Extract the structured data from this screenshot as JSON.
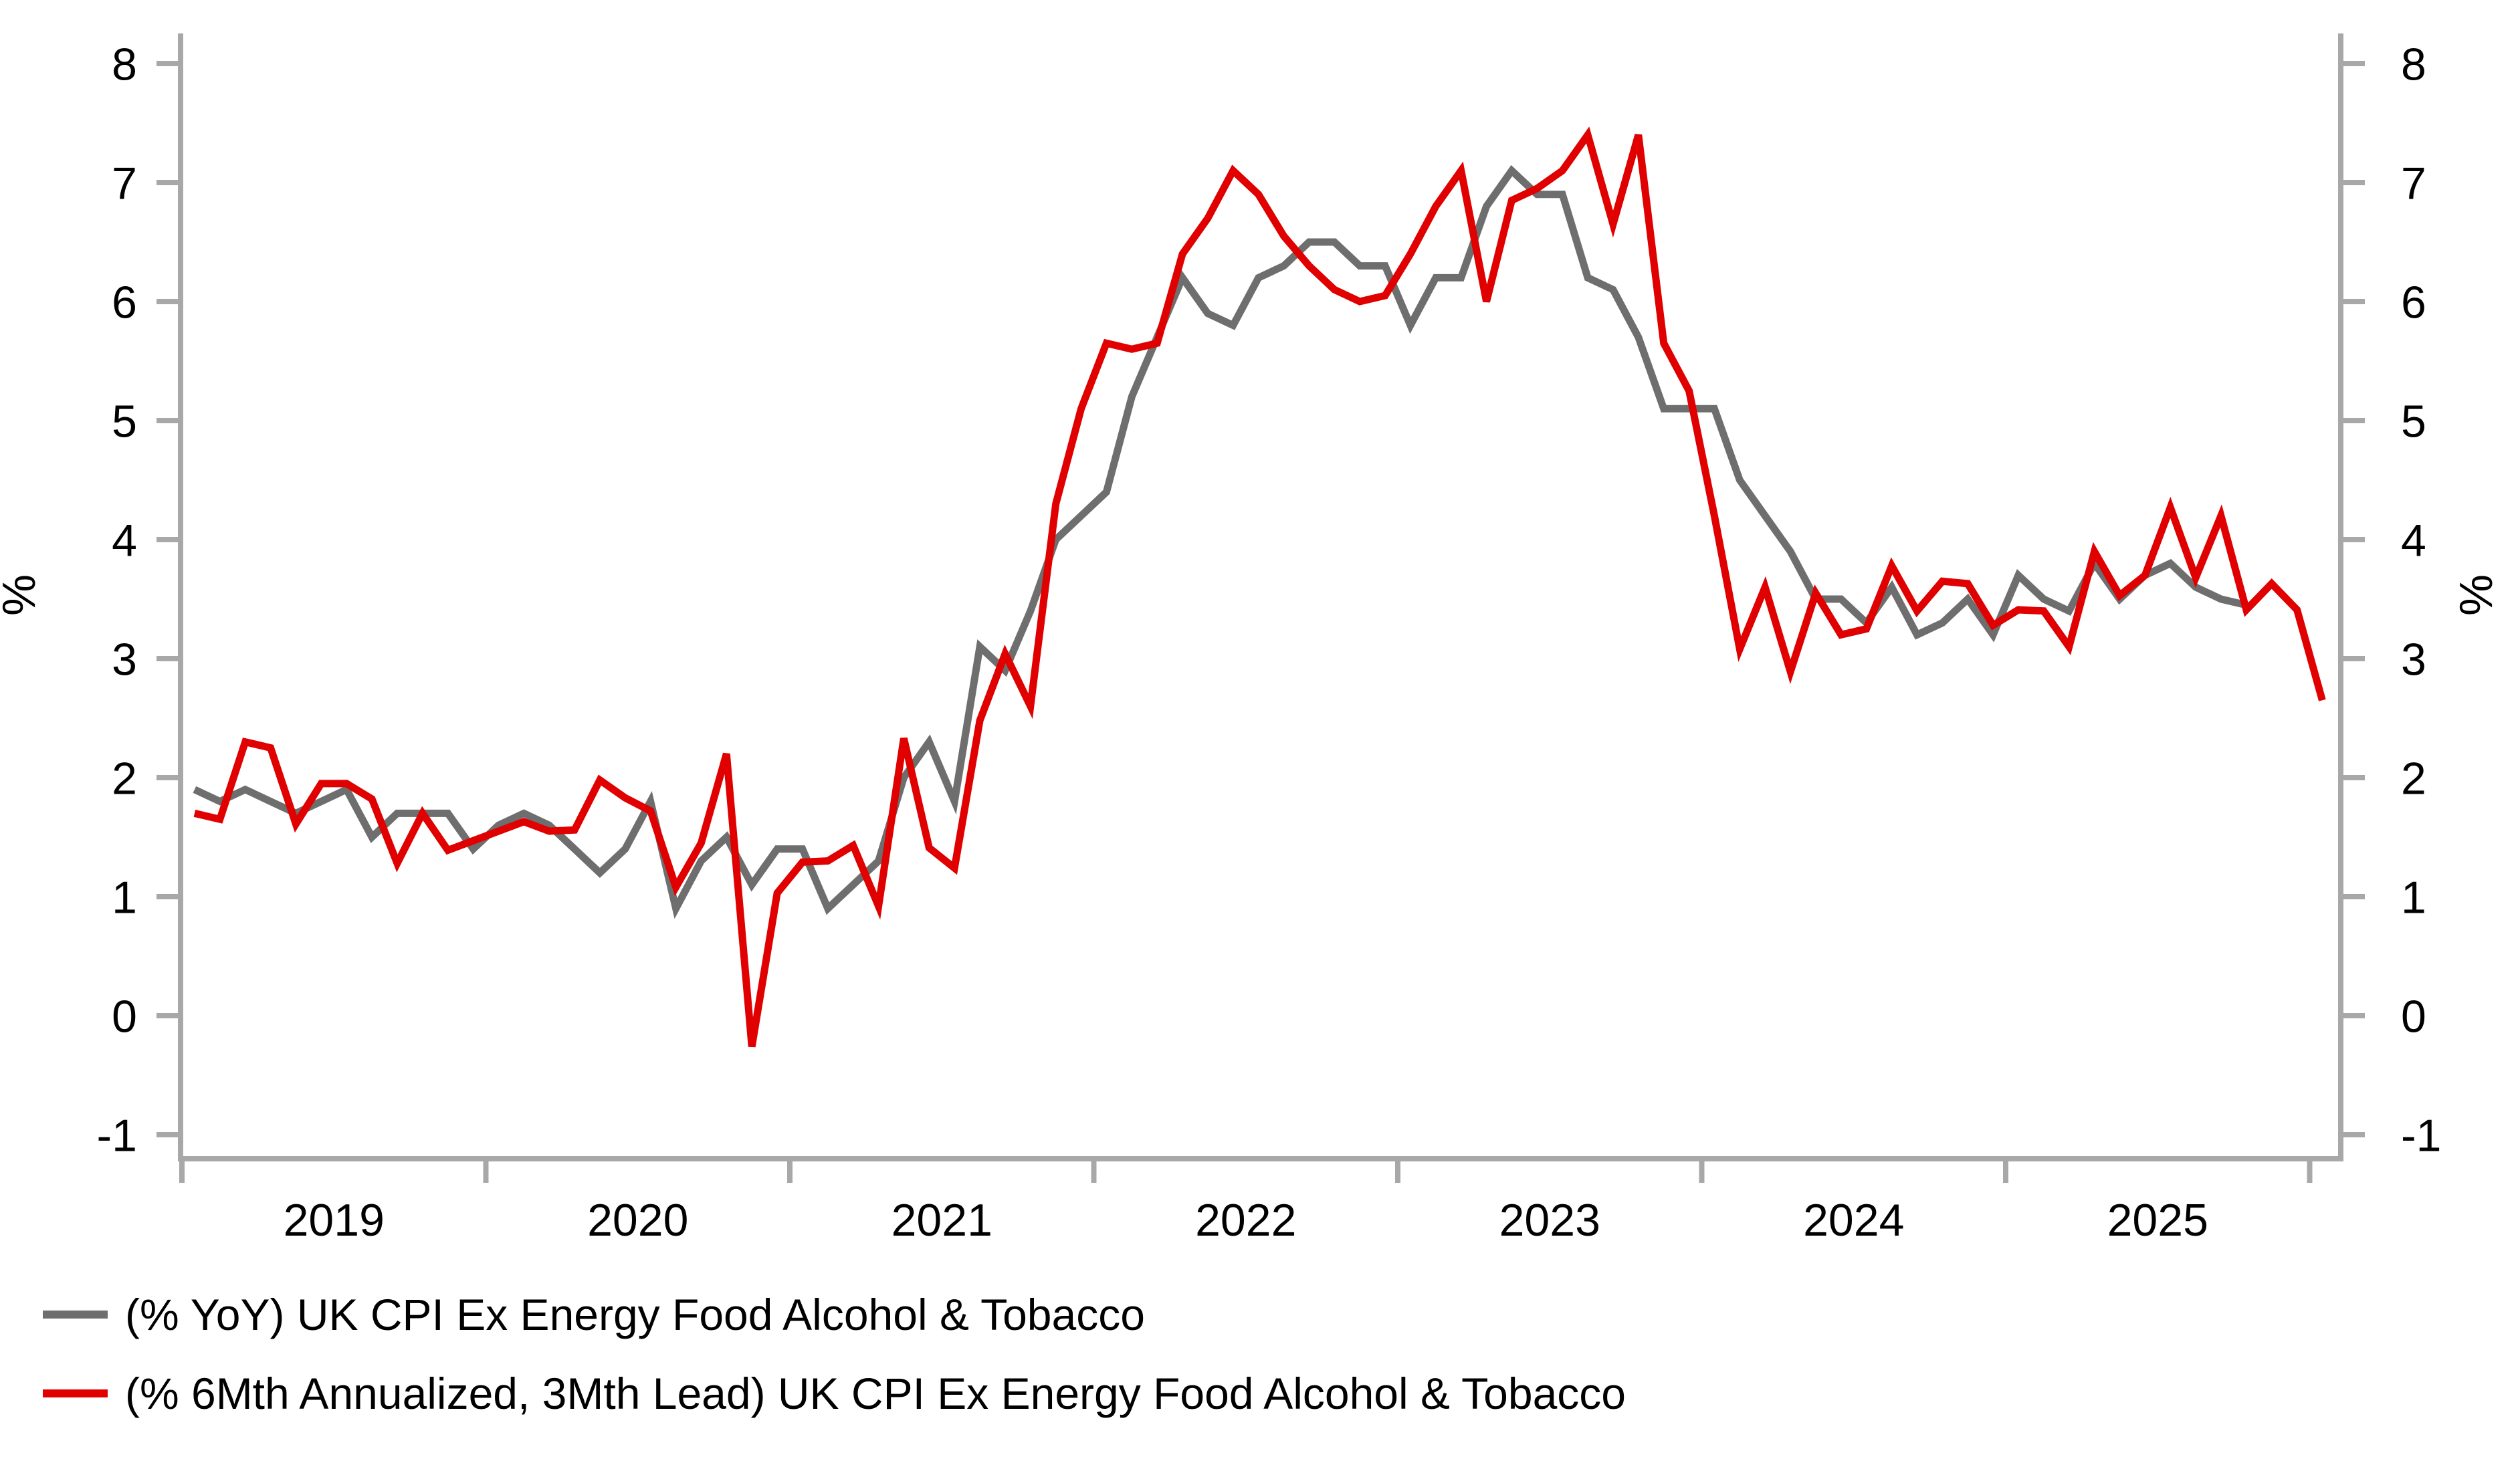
{
  "chart_data": {
    "type": "line",
    "title": "",
    "ylabel_left": "%",
    "ylabel_right": "%",
    "ylim": [
      -1,
      8
    ],
    "y_ticks": [
      8,
      7,
      6,
      5,
      4,
      3,
      2,
      1,
      0,
      -1
    ],
    "x_year_labels": [
      "2019",
      "2020",
      "2021",
      "2022",
      "2023",
      "2024",
      "2025"
    ],
    "x_start": "2019-01",
    "frequency": "monthly",
    "grid": false,
    "legend_position": "bottom-left",
    "axis_color": "#a8a8a8",
    "text_color": "#000000",
    "series": [
      {
        "name": "(% YoY) UK CPI Ex Energy Food Alcohol & Tobacco",
        "color": "#6e6e6e",
        "start": "2019-01",
        "end": "2025-10",
        "values": [
          1.9,
          1.8,
          1.9,
          1.8,
          1.7,
          1.8,
          1.9,
          1.5,
          1.7,
          1.7,
          1.7,
          1.4,
          1.6,
          1.7,
          1.6,
          1.4,
          1.2,
          1.4,
          1.8,
          0.9,
          1.3,
          1.5,
          1.1,
          1.4,
          1.4,
          0.9,
          1.1,
          1.3,
          2.0,
          2.3,
          1.8,
          3.1,
          2.9,
          3.4,
          4.0,
          4.2,
          4.4,
          5.2,
          5.7,
          6.2,
          5.9,
          5.8,
          6.2,
          6.3,
          6.5,
          6.5,
          6.3,
          6.3,
          5.8,
          6.2,
          6.2,
          6.8,
          7.1,
          6.9,
          6.9,
          6.2,
          6.1,
          5.7,
          5.1,
          5.1,
          5.1,
          4.5,
          4.2,
          3.9,
          3.5,
          3.5,
          3.3,
          3.6,
          3.2,
          3.3,
          3.5,
          3.2,
          3.7,
          3.5,
          3.4,
          3.8,
          3.5,
          3.7,
          3.8,
          3.6,
          3.5,
          3.45
        ]
      },
      {
        "name": "(% 6Mth Annualized, 3Mth Lead) UK CPI Ex Energy Food Alcohol & Tobacco",
        "color": "#e00000",
        "start": "2019-01",
        "end": "2026-01",
        "values": [
          1.7,
          1.65,
          2.3,
          2.25,
          1.61,
          1.95,
          1.95,
          1.82,
          1.28,
          1.7,
          1.39,
          1.47,
          1.55,
          1.63,
          1.55,
          1.56,
          1.98,
          1.83,
          1.72,
          1.08,
          1.45,
          2.2,
          -0.26,
          1.03,
          1.29,
          1.3,
          1.43,
          0.92,
          2.33,
          1.41,
          1.24,
          2.48,
          3.04,
          2.6,
          4.3,
          5.1,
          5.65,
          5.6,
          5.65,
          6.4,
          6.7,
          7.1,
          6.9,
          6.55,
          6.3,
          6.1,
          6.0,
          6.05,
          6.4,
          6.8,
          7.1,
          6.0,
          6.85,
          6.95,
          7.1,
          7.4,
          6.65,
          7.4,
          5.65,
          5.25,
          4.2,
          3.08,
          3.6,
          2.89,
          3.55,
          3.2,
          3.25,
          3.78,
          3.4,
          3.65,
          3.63,
          3.28,
          3.41,
          3.4,
          3.1,
          3.9,
          3.53,
          3.7,
          4.27,
          3.68,
          4.2,
          3.41,
          3.63,
          3.41,
          2.65
        ]
      }
    ],
    "legend": [
      "(% YoY) UK CPI Ex Energy Food Alcohol & Tobacco",
      "(% 6Mth Annualized, 3Mth Lead) UK CPI Ex Energy Food Alcohol & Tobacco"
    ]
  }
}
